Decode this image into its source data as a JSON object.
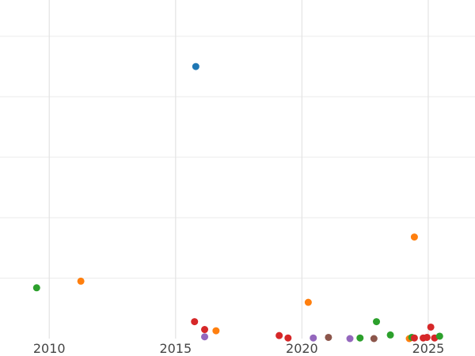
{
  "chart_data": {
    "type": "scatter",
    "title": "",
    "xlabel": "",
    "ylabel": "",
    "x_ticks": [
      "2010",
      "2015",
      "2020",
      "2025"
    ],
    "xlim": [
      2008.05,
      2026.85
    ],
    "ylim": [
      0,
      5.6
    ],
    "y_gridlines": [
      1,
      2,
      3,
      4,
      5
    ],
    "grid": true,
    "legend": "none",
    "colors": {
      "blue": "#1f77b4",
      "orange": "#ff7f0e",
      "green": "#2ca02c",
      "red": "#d62728",
      "purple": "#9467bd",
      "brown": "#8c564b"
    },
    "points": [
      {
        "x": 2015.8,
        "y": 4.5,
        "color": "blue"
      },
      {
        "x": 2009.5,
        "y": 0.84,
        "color": "green"
      },
      {
        "x": 2011.25,
        "y": 0.95,
        "color": "orange"
      },
      {
        "x": 2015.75,
        "y": 0.28,
        "color": "red"
      },
      {
        "x": 2016.15,
        "y": 0.15,
        "color": "red"
      },
      {
        "x": 2016.15,
        "y": 0.03,
        "color": "purple"
      },
      {
        "x": 2016.6,
        "y": 0.13,
        "color": "orange"
      },
      {
        "x": 2019.1,
        "y": 0.05,
        "color": "red"
      },
      {
        "x": 2019.45,
        "y": 0.01,
        "color": "red"
      },
      {
        "x": 2020.25,
        "y": 0.6,
        "color": "orange"
      },
      {
        "x": 2020.45,
        "y": 0.01,
        "color": "purple"
      },
      {
        "x": 2021.05,
        "y": 0.02,
        "color": "brown"
      },
      {
        "x": 2021.9,
        "y": 0.0,
        "color": "purple"
      },
      {
        "x": 2022.3,
        "y": 0.01,
        "color": "green"
      },
      {
        "x": 2022.85,
        "y": 0.0,
        "color": "brown"
      },
      {
        "x": 2022.95,
        "y": 0.28,
        "color": "green"
      },
      {
        "x": 2023.5,
        "y": 0.06,
        "color": "green"
      },
      {
        "x": 2024.25,
        "y": 0.0,
        "color": "orange"
      },
      {
        "x": 2024.35,
        "y": 0.02,
        "color": "green"
      },
      {
        "x": 2024.45,
        "y": 0.01,
        "color": "red"
      },
      {
        "x": 2024.45,
        "y": 1.68,
        "color": "orange"
      },
      {
        "x": 2024.8,
        "y": 0.01,
        "color": "red"
      },
      {
        "x": 2024.95,
        "y": 0.02,
        "color": "red"
      },
      {
        "x": 2025.1,
        "y": 0.19,
        "color": "red"
      },
      {
        "x": 2025.25,
        "y": 0.01,
        "color": "red"
      },
      {
        "x": 2025.45,
        "y": 0.04,
        "color": "green"
      }
    ]
  }
}
